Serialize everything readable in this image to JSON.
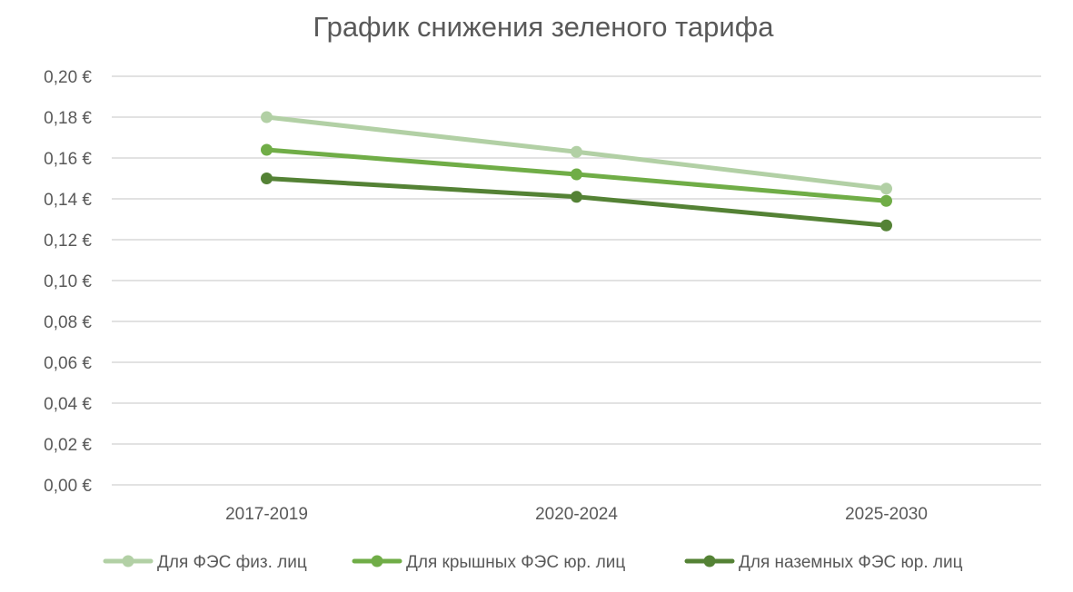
{
  "chart_data": {
    "type": "line",
    "title": "График снижения зеленого тарифа",
    "xlabel": "",
    "ylabel": "",
    "categories": [
      "2017-2019",
      "2020-2024",
      "2025-2030"
    ],
    "ylim": [
      0,
      0.2
    ],
    "y_ticks": [
      "0,00 €",
      "0,02 €",
      "0,04 €",
      "0,06 €",
      "0,08 €",
      "0,10 €",
      "0,12 €",
      "0,14 €",
      "0,16 €",
      "0,18 €",
      "0,20 €"
    ],
    "grid": true,
    "legend_position": "bottom",
    "series": [
      {
        "name": "Для ФЭС физ. лиц",
        "color": "#b2d0a5",
        "values": [
          0.18,
          0.163,
          0.145
        ]
      },
      {
        "name": "Для крышных ФЭС юр. лиц",
        "color": "#70ad47",
        "values": [
          0.164,
          0.152,
          0.139
        ]
      },
      {
        "name": "Для наземных ФЭС юр. лиц",
        "color": "#548235",
        "values": [
          0.15,
          0.141,
          0.127
        ]
      }
    ]
  }
}
